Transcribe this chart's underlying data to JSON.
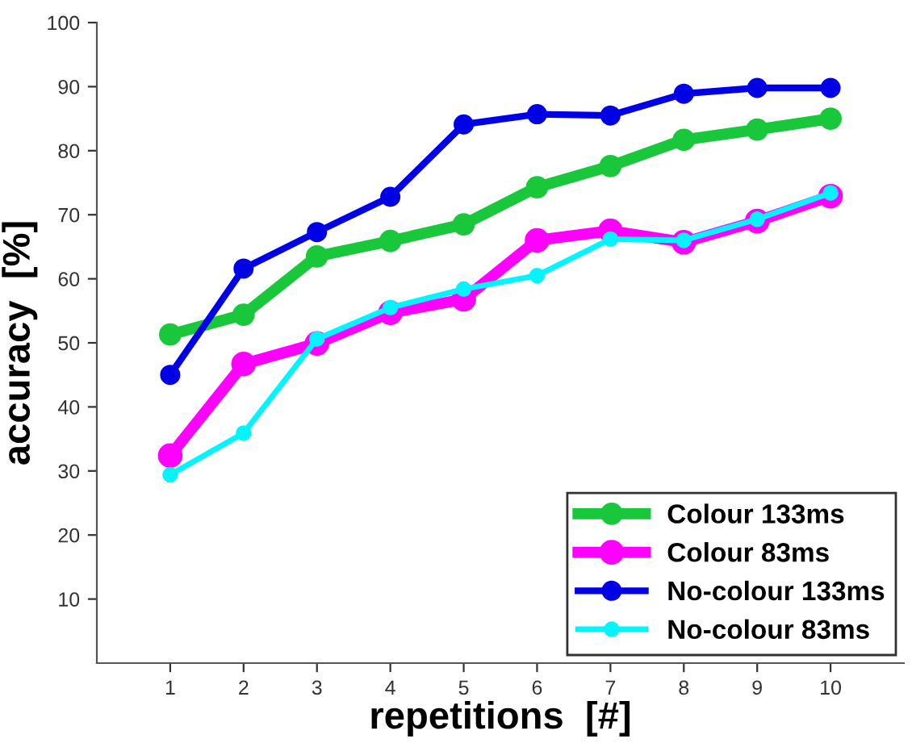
{
  "chart_data": {
    "type": "line",
    "xlabel": "repetitions  [#]",
    "ylabel": "accuracy  [%]",
    "x": [
      1,
      2,
      3,
      4,
      5,
      6,
      7,
      8,
      9,
      10
    ],
    "xlim": [
      0,
      11
    ],
    "xticks": [
      1,
      2,
      3,
      4,
      5,
      6,
      7,
      8,
      9,
      10
    ],
    "ylim": [
      0,
      100
    ],
    "yticks": [
      10,
      20,
      30,
      40,
      50,
      60,
      70,
      80,
      90,
      100
    ],
    "grid": false,
    "legend": "bottom right",
    "marker": "circle",
    "line_style": "solid",
    "series": [
      {
        "name": "Colour 133ms",
        "color": "#19c83a",
        "values": [
          51.3,
          54.4,
          63.5,
          65.9,
          68.5,
          74.3,
          77.6,
          81.7,
          83.3,
          85.0
        ]
      },
      {
        "name": "Colour 83ms",
        "color": "#ff00ff",
        "values": [
          32.4,
          46.7,
          49.9,
          54.7,
          56.8,
          66.0,
          67.5,
          65.7,
          69.0,
          72.9
        ]
      },
      {
        "name": "No-colour 133ms",
        "color": "#0000e6",
        "values": [
          45.0,
          61.6,
          67.3,
          72.8,
          84.1,
          85.7,
          85.5,
          88.9,
          89.8,
          89.8
        ]
      },
      {
        "name": "No-colour 83ms",
        "color": "#00f5ff",
        "values": [
          29.4,
          35.9,
          50.6,
          55.5,
          58.4,
          60.5,
          66.2,
          66.0,
          69.3,
          73.4
        ]
      }
    ]
  }
}
